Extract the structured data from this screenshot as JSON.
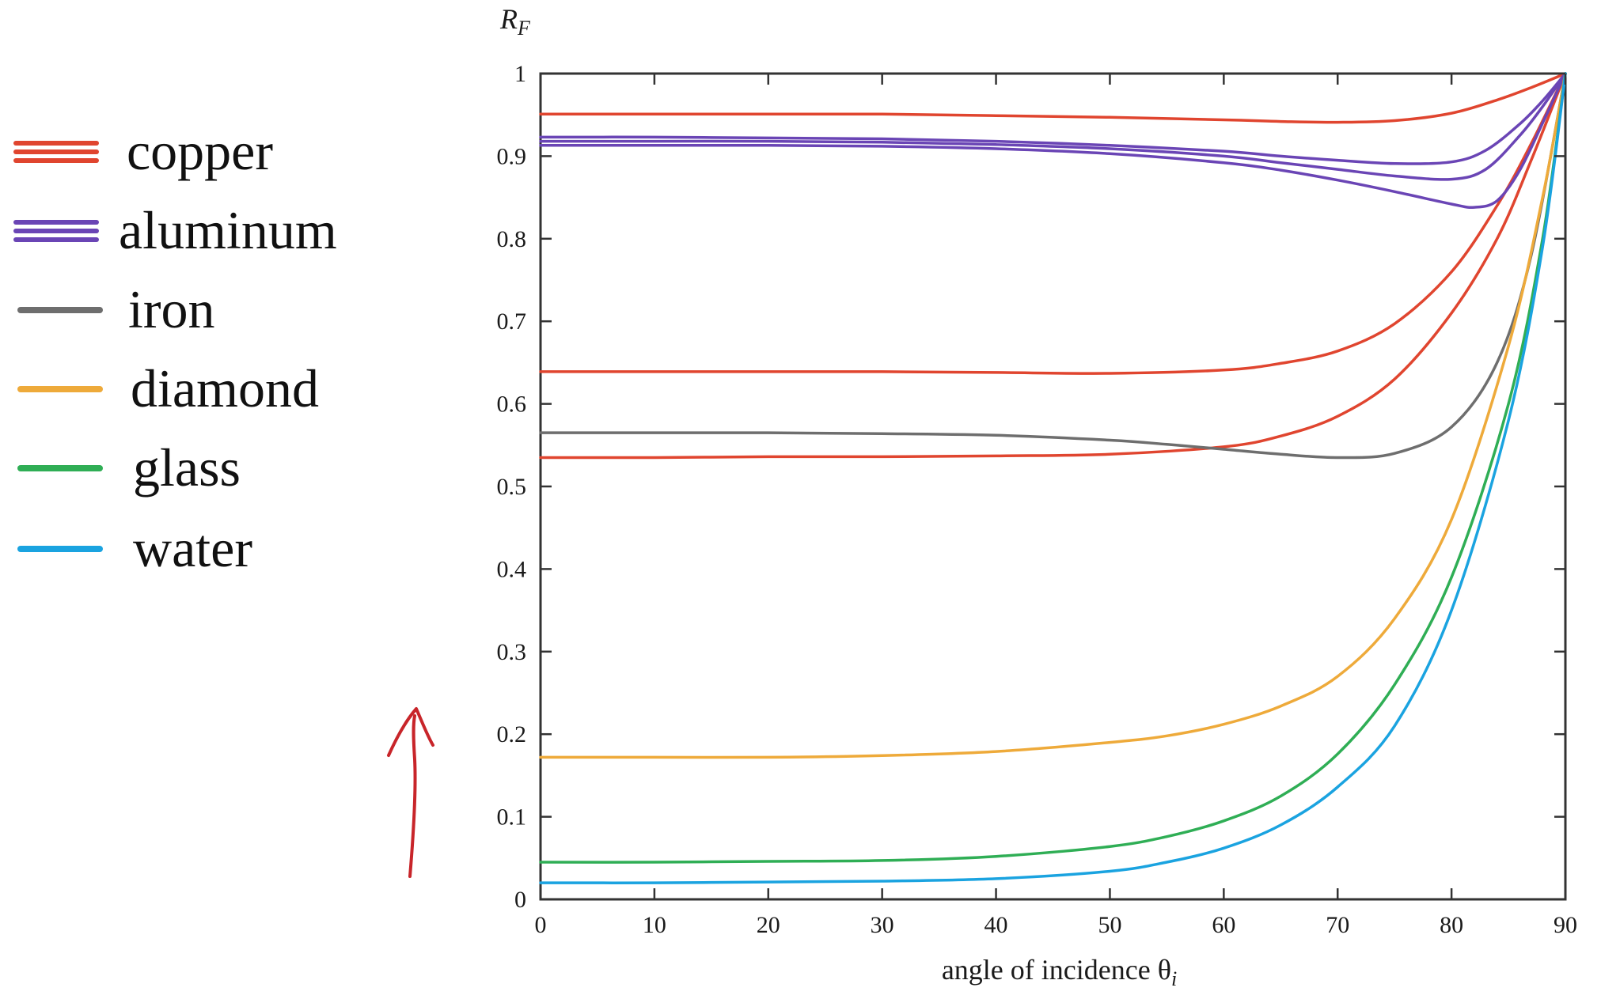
{
  "chart_data": {
    "type": "line",
    "title": "",
    "ylabel": "R",
    "ylabel_sub": "F",
    "xlabel": "angle of incidence θ",
    "xlabel_sub": "i",
    "xlim": [
      0,
      90
    ],
    "ylim": [
      0,
      1
    ],
    "xticks": [
      "0",
      "10",
      "20",
      "30",
      "40",
      "50",
      "60",
      "70",
      "80",
      "90"
    ],
    "yticks": [
      "0",
      "0.1",
      "0.2",
      "0.3",
      "0.4",
      "0.5",
      "0.6",
      "0.7",
      "0.8",
      "0.9",
      "1"
    ],
    "grid": false,
    "legend_position": "left",
    "legend": [
      {
        "label": "copper",
        "color": "#e0452f",
        "lines": 3
      },
      {
        "label": "aluminum",
        "color": "#6a45b5",
        "lines": 3
      },
      {
        "label": "iron",
        "color": "#6e6e6e",
        "lines": 1
      },
      {
        "label": "diamond",
        "color": "#eeaa3a",
        "lines": 1
      },
      {
        "label": "glass",
        "color": "#2fae55",
        "lines": 1
      },
      {
        "label": "water",
        "color": "#1aa3e0",
        "lines": 1
      }
    ],
    "series": [
      {
        "material": "copper",
        "color": "#e0452f",
        "x": [
          0,
          10,
          20,
          30,
          40,
          50,
          60,
          65,
          70,
          75,
          80,
          84,
          87,
          90
        ],
        "y": [
          0.951,
          0.951,
          0.951,
          0.951,
          0.949,
          0.947,
          0.944,
          0.942,
          0.941,
          0.943,
          0.952,
          0.968,
          0.983,
          1.0
        ]
      },
      {
        "material": "copper",
        "color": "#e0452f",
        "x": [
          0,
          10,
          20,
          30,
          40,
          50,
          60,
          65,
          70,
          75,
          80,
          84,
          87,
          90
        ],
        "y": [
          0.639,
          0.639,
          0.639,
          0.639,
          0.638,
          0.637,
          0.641,
          0.649,
          0.664,
          0.697,
          0.76,
          0.84,
          0.915,
          1.0
        ]
      },
      {
        "material": "copper",
        "color": "#e0452f",
        "x": [
          0,
          10,
          20,
          30,
          40,
          50,
          60,
          65,
          70,
          75,
          80,
          84,
          87,
          90
        ],
        "y": [
          0.535,
          0.535,
          0.536,
          0.536,
          0.537,
          0.539,
          0.548,
          0.561,
          0.585,
          0.63,
          0.71,
          0.8,
          0.895,
          1.0
        ]
      },
      {
        "material": "aluminum",
        "color": "#6a45b5",
        "x": [
          0,
          10,
          20,
          30,
          40,
          50,
          60,
          65,
          70,
          75,
          80,
          83,
          86,
          88,
          90
        ],
        "y": [
          0.923,
          0.923,
          0.922,
          0.921,
          0.918,
          0.913,
          0.906,
          0.9,
          0.895,
          0.891,
          0.893,
          0.907,
          0.939,
          0.967,
          1.0
        ]
      },
      {
        "material": "aluminum",
        "color": "#6a45b5",
        "x": [
          0,
          10,
          20,
          30,
          40,
          50,
          60,
          65,
          70,
          75,
          80,
          83,
          86,
          88,
          90
        ],
        "y": [
          0.918,
          0.918,
          0.918,
          0.917,
          0.914,
          0.909,
          0.9,
          0.892,
          0.884,
          0.876,
          0.872,
          0.884,
          0.925,
          0.96,
          1.0
        ]
      },
      {
        "material": "aluminum",
        "color": "#6a45b5",
        "x": [
          0,
          10,
          20,
          30,
          40,
          50,
          60,
          65,
          70,
          75,
          80,
          82,
          84,
          86,
          88,
          90
        ],
        "y": [
          0.913,
          0.913,
          0.913,
          0.912,
          0.909,
          0.903,
          0.892,
          0.883,
          0.871,
          0.857,
          0.842,
          0.838,
          0.846,
          0.883,
          0.94,
          1.0
        ]
      },
      {
        "material": "iron",
        "color": "#6e6e6e",
        "x": [
          0,
          10,
          20,
          30,
          40,
          50,
          55,
          60,
          65,
          70,
          75,
          80,
          84,
          87,
          90
        ],
        "y": [
          0.565,
          0.565,
          0.565,
          0.564,
          0.562,
          0.556,
          0.551,
          0.545,
          0.539,
          0.535,
          0.54,
          0.572,
          0.65,
          0.78,
          1.0
        ]
      },
      {
        "material": "diamond",
        "color": "#eeaa3a",
        "x": [
          0,
          10,
          20,
          30,
          40,
          50,
          55,
          60,
          65,
          70,
          75,
          80,
          85,
          88,
          90
        ],
        "y": [
          0.172,
          0.172,
          0.172,
          0.174,
          0.179,
          0.19,
          0.198,
          0.212,
          0.234,
          0.27,
          0.34,
          0.46,
          0.67,
          0.85,
          1.0
        ]
      },
      {
        "material": "glass",
        "color": "#2fae55",
        "x": [
          0,
          10,
          20,
          30,
          40,
          50,
          55,
          60,
          65,
          70,
          75,
          80,
          85,
          88,
          90
        ],
        "y": [
          0.045,
          0.045,
          0.046,
          0.047,
          0.052,
          0.064,
          0.076,
          0.095,
          0.125,
          0.176,
          0.26,
          0.39,
          0.6,
          0.8,
          1.0
        ]
      },
      {
        "material": "water",
        "color": "#1aa3e0",
        "x": [
          0,
          10,
          20,
          30,
          40,
          50,
          55,
          60,
          65,
          70,
          75,
          80,
          85,
          88,
          90
        ],
        "y": [
          0.02,
          0.02,
          0.021,
          0.022,
          0.025,
          0.034,
          0.045,
          0.062,
          0.09,
          0.136,
          0.21,
          0.35,
          0.58,
          0.79,
          1.0
        ]
      }
    ]
  },
  "annotation": {
    "type": "hand-drawn-arrow",
    "color": "#c8252a"
  }
}
